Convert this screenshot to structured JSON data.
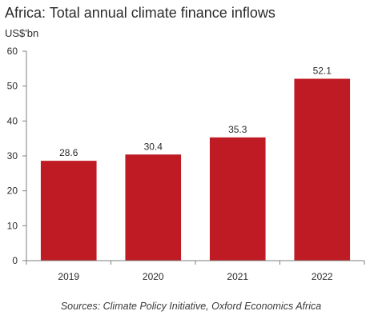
{
  "title": "Africa: Total annual climate finance inflows",
  "unit_label": "US$'bn",
  "source": "Sources: Climate Policy Initiative, Oxford Economics Africa",
  "colors": {
    "bar": "#bf1b24",
    "axis": "#7f7f7f",
    "text": "#2b2b2b"
  },
  "chart_data": {
    "type": "bar",
    "title": "Africa: Total annual climate finance inflows",
    "ylabel": "US$'bn",
    "xlabel": "",
    "categories": [
      "2019",
      "2020",
      "2021",
      "2022"
    ],
    "values": [
      28.6,
      30.4,
      35.3,
      52.1
    ],
    "value_labels": [
      "28.6",
      "30.4",
      "35.3",
      "52.1"
    ],
    "ylim": [
      0,
      60
    ],
    "yticks": [
      0,
      10,
      20,
      30,
      40,
      50,
      60
    ],
    "grid": false,
    "legend": "none"
  }
}
